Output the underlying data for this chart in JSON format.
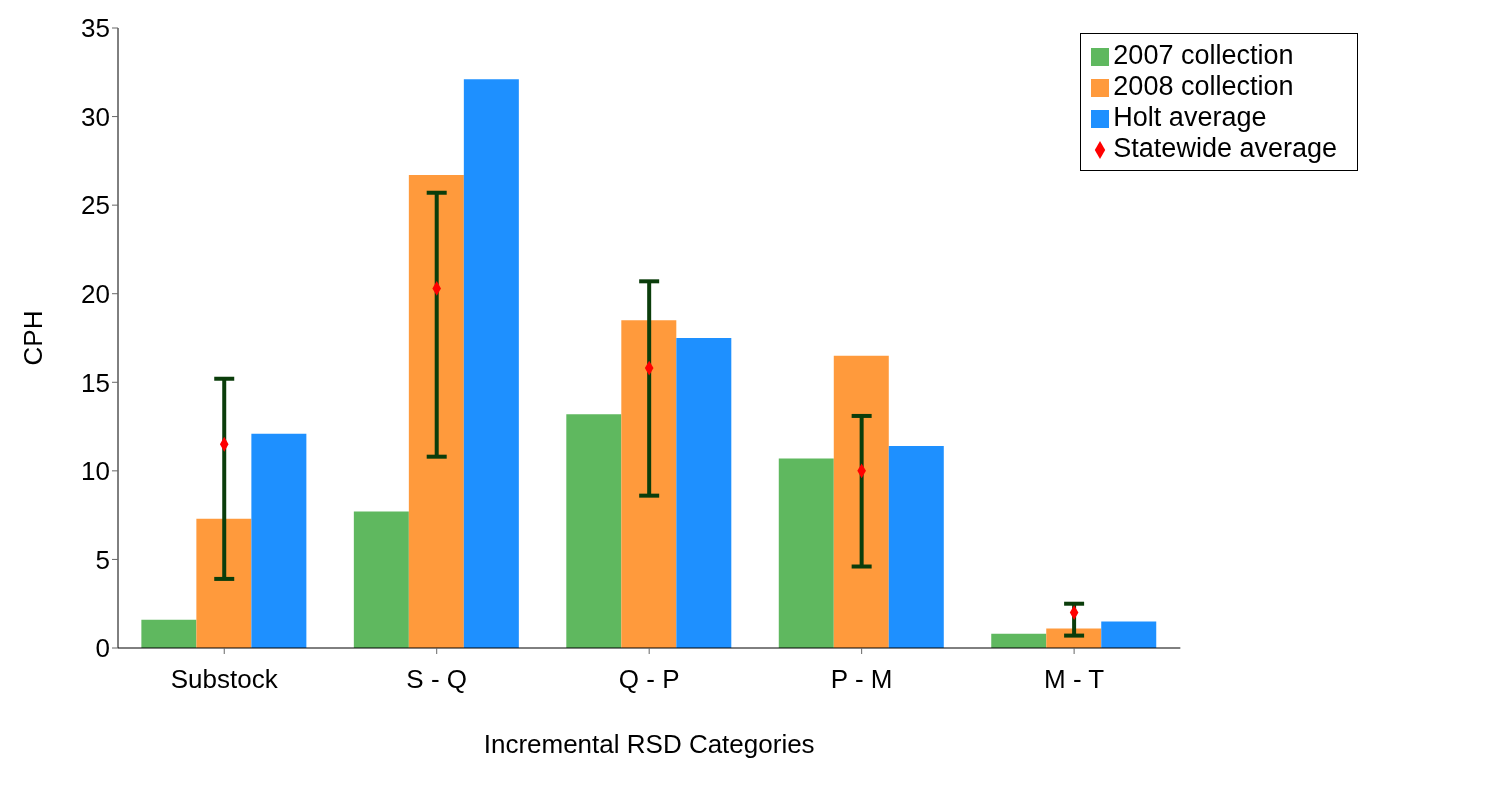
{
  "chart_data": {
    "type": "bar",
    "xlabel": "Incremental RSD Categories",
    "ylabel": "CPH",
    "categories": [
      "Substock",
      "S - Q",
      "Q - P",
      "P - M",
      "M - T"
    ],
    "series": [
      {
        "name": "2007 collection",
        "color": "#5fb85f",
        "values": [
          1.6,
          7.7,
          13.2,
          10.7,
          0.8
        ]
      },
      {
        "name": "2008 collection",
        "color": "#ff9a3c",
        "values": [
          7.3,
          26.7,
          18.5,
          16.5,
          1.1
        ]
      },
      {
        "name": "Holt average",
        "color": "#1e90ff",
        "values": [
          12.1,
          32.1,
          17.5,
          11.4,
          1.5
        ]
      },
      {
        "name": "Statewide average",
        "type": "scatter",
        "color": "#ff0000",
        "x": [
          "Substock",
          "S - Q",
          "Q - P",
          "P - M",
          "M - T"
        ],
        "values": [
          11.5,
          20.3,
          15.8,
          10.0,
          2.0
        ],
        "errors": [
          [
            3.9,
            15.2
          ],
          [
            10.8,
            25.7
          ],
          [
            8.6,
            20.7
          ],
          [
            4.6,
            13.1
          ],
          [
            0.7,
            2.5
          ]
        ]
      }
    ],
    "ylim": [
      0,
      35
    ],
    "yticks": [
      0,
      5,
      10,
      15,
      20,
      25,
      30,
      35
    ],
    "legend": "top right",
    "marker": "diamond"
  }
}
